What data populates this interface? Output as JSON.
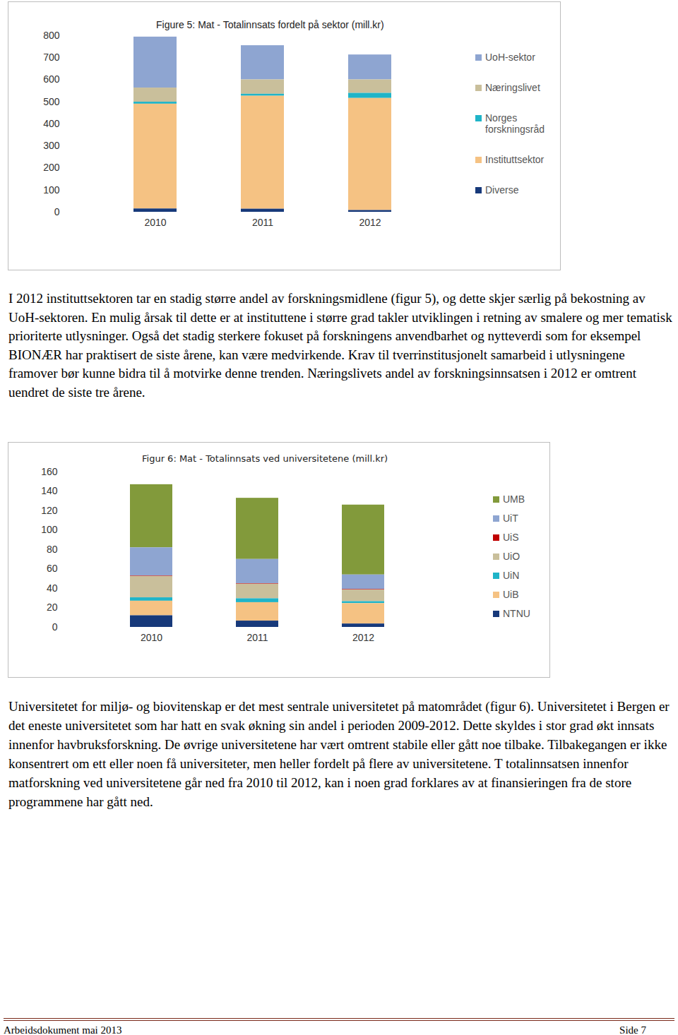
{
  "chart_data": [
    {
      "type": "bar",
      "title": "Figure 5: Mat - Totalinnsats fordelt på sektor (mill.kr)",
      "categories": [
        "2010",
        "2011",
        "2012"
      ],
      "series": [
        {
          "name": "UoH-sektor",
          "color": "#8ea5d1",
          "values": [
            231,
            155,
            113
          ]
        },
        {
          "name": "Næringslivet",
          "color": "#c9bf9b",
          "values": [
            64,
            65,
            61
          ]
        },
        {
          "name": "Norges forskningsråd",
          "color": "#1fb4c8",
          "values": [
            9,
            9,
            23
          ]
        },
        {
          "name": "Instituttsektor",
          "color": "#f5c283",
          "values": [
            475,
            512,
            508
          ]
        },
        {
          "name": "Diverse",
          "color": "#17397a",
          "values": [
            15,
            14,
            8
          ]
        }
      ],
      "stacked": true,
      "ylim": [
        0,
        800
      ],
      "yticks": [
        0,
        100,
        200,
        300,
        400,
        500,
        600,
        700,
        800
      ],
      "grid": false,
      "legend": "right"
    },
    {
      "type": "bar",
      "title": "Figur 6: Mat - Totalinnsats ved universitetene (mill.kr)",
      "categories": [
        "2010",
        "2011",
        "2012"
      ],
      "series": [
        {
          "name": "UMB",
          "color": "#829a3b",
          "values": [
            65,
            63,
            72
          ]
        },
        {
          "name": "UiT",
          "color": "#8ea5d1",
          "values": [
            29,
            25,
            15
          ]
        },
        {
          "name": "UiS",
          "color": "#c00000",
          "values": [
            0.5,
            0.5,
            0.5
          ]
        },
        {
          "name": "UiO",
          "color": "#c9bf9b",
          "values": [
            22,
            15,
            12
          ]
        },
        {
          "name": "UiN",
          "color": "#1fb4c8",
          "values": [
            3.5,
            4,
            2
          ]
        },
        {
          "name": "UiB",
          "color": "#f5c283",
          "values": [
            15,
            19,
            21
          ]
        },
        {
          "name": "NTNU",
          "color": "#17397a",
          "values": [
            12,
            6.5,
            3.5
          ]
        }
      ],
      "stacked": true,
      "ylim": [
        0,
        160
      ],
      "yticks": [
        0,
        20,
        40,
        60,
        80,
        100,
        120,
        140,
        160
      ],
      "grid": false,
      "legend": "right"
    }
  ],
  "document": {
    "paragraphs": [
      "I 2012 instituttsektoren tar en stadig større andel av forskningsmidlene (figur 5), og dette skjer særlig på bekostning av UoH-sektoren. En mulig årsak til dette er at instituttene i større grad takler utviklingen i retning av smalere og mer tematisk prioriterte utlysninger. Også det stadig sterkere fokuset på forskningens anvendbarhet og nytteverdi som for eksempel BIONÆR har praktisert de siste årene, kan være medvirkende. Krav til tverrinstitusjonelt samarbeid i utlysningene framover bør kunne bidra til å motvirke denne trenden. Næringslivets andel av forskningsinnsatsen i 2012 er omtrent uendret de siste tre årene.",
      "Universitetet for miljø- og biovitenskap er det mest sentrale universitetet på matområdet (figur 6). Universitetet i Bergen er det eneste universitetet som har hatt en svak økning sin andel i perioden 2009-2012. Dette skyldes i stor grad økt innsats innenfor havbruksforskning. De øvrige universitetene har vært omtrent stabile eller gått noe tilbake. Tilbakegangen er ikke konsentrert om ett eller noen få universiteter, men heller fordelt på flere av universitetene. T totalinnsatsen innenfor matforskning ved universitetene går ned fra 2010 til 2012, kan i noen grad forklares av at finansieringen fra de store programmene har gått ned."
    ],
    "footer": {
      "left": "Arbeidsdokument mai 2013",
      "right": "Side 7"
    }
  }
}
